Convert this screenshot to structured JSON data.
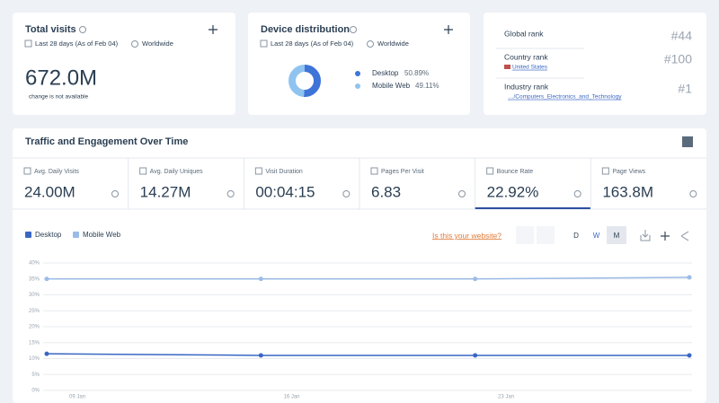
{
  "total_visits": {
    "title": "Total visits",
    "period": "Last 28 days (As of Feb 04)",
    "region": "Worldwide",
    "value": "672.0M",
    "note": "change is not available"
  },
  "device_distribution": {
    "title": "Device distribution",
    "period": "Last 28 days (As of Feb 04)",
    "region": "Worldwide"
  },
  "ranks": [
    {
      "label": "Global rank",
      "value": "#44"
    },
    {
      "label": "Country rank",
      "link": "United States",
      "value": "#100"
    },
    {
      "label": "Industry rank",
      "link": "…/Computers_Electronics_and_Technology",
      "value": "#1"
    }
  ],
  "section_title": "Traffic and Engagement Over Time",
  "metrics": [
    {
      "label": "Avg. Daily Visits",
      "value": "24.00M"
    },
    {
      "label": "Avg. Daily Uniques",
      "value": "14.27M"
    },
    {
      "label": "Visit Duration",
      "value": "00:04:15"
    },
    {
      "label": "Pages Per Visit",
      "value": "6.83"
    },
    {
      "label": "Bounce Rate",
      "value": "22.92%"
    },
    {
      "label": "Page Views",
      "value": "163.8M"
    }
  ],
  "toolbar": {
    "link": "Is this your website?",
    "granularity": [
      "D",
      "W",
      "M"
    ]
  },
  "chart_data": [
    {
      "type": "donut",
      "categories": [
        "Desktop",
        "Mobile Web"
      ],
      "values": [
        50.89,
        49.11
      ],
      "value_labels": [
        "50.89%",
        "49.11%"
      ],
      "colors": [
        "#3e74d8",
        "#8fc4f0"
      ]
    },
    {
      "type": "line",
      "x_tick_labels": [
        "09 Jan",
        "16 Jan",
        "23 Jan"
      ],
      "series": [
        {
          "name": "Desktop",
          "color": "#3a67c4",
          "values": [
            11.5,
            11,
            11,
            11
          ]
        },
        {
          "name": "Mobile Web",
          "color": "#9cbbe6",
          "values": [
            35,
            35,
            35,
            35.5
          ]
        }
      ],
      "ylim": [
        0,
        40
      ],
      "yticks": [
        {
          "value": 0,
          "label": "0%"
        },
        {
          "value": 5,
          "label": "5%"
        },
        {
          "value": 10,
          "label": "10%"
        },
        {
          "value": 15,
          "label": "15%"
        },
        {
          "value": 20,
          "label": "20%"
        },
        {
          "value": 25,
          "label": "25%"
        },
        {
          "value": 30,
          "label": "30%"
        },
        {
          "value": 35,
          "label": "35%"
        },
        {
          "value": 40,
          "label": "40%"
        }
      ],
      "grid": true
    }
  ]
}
